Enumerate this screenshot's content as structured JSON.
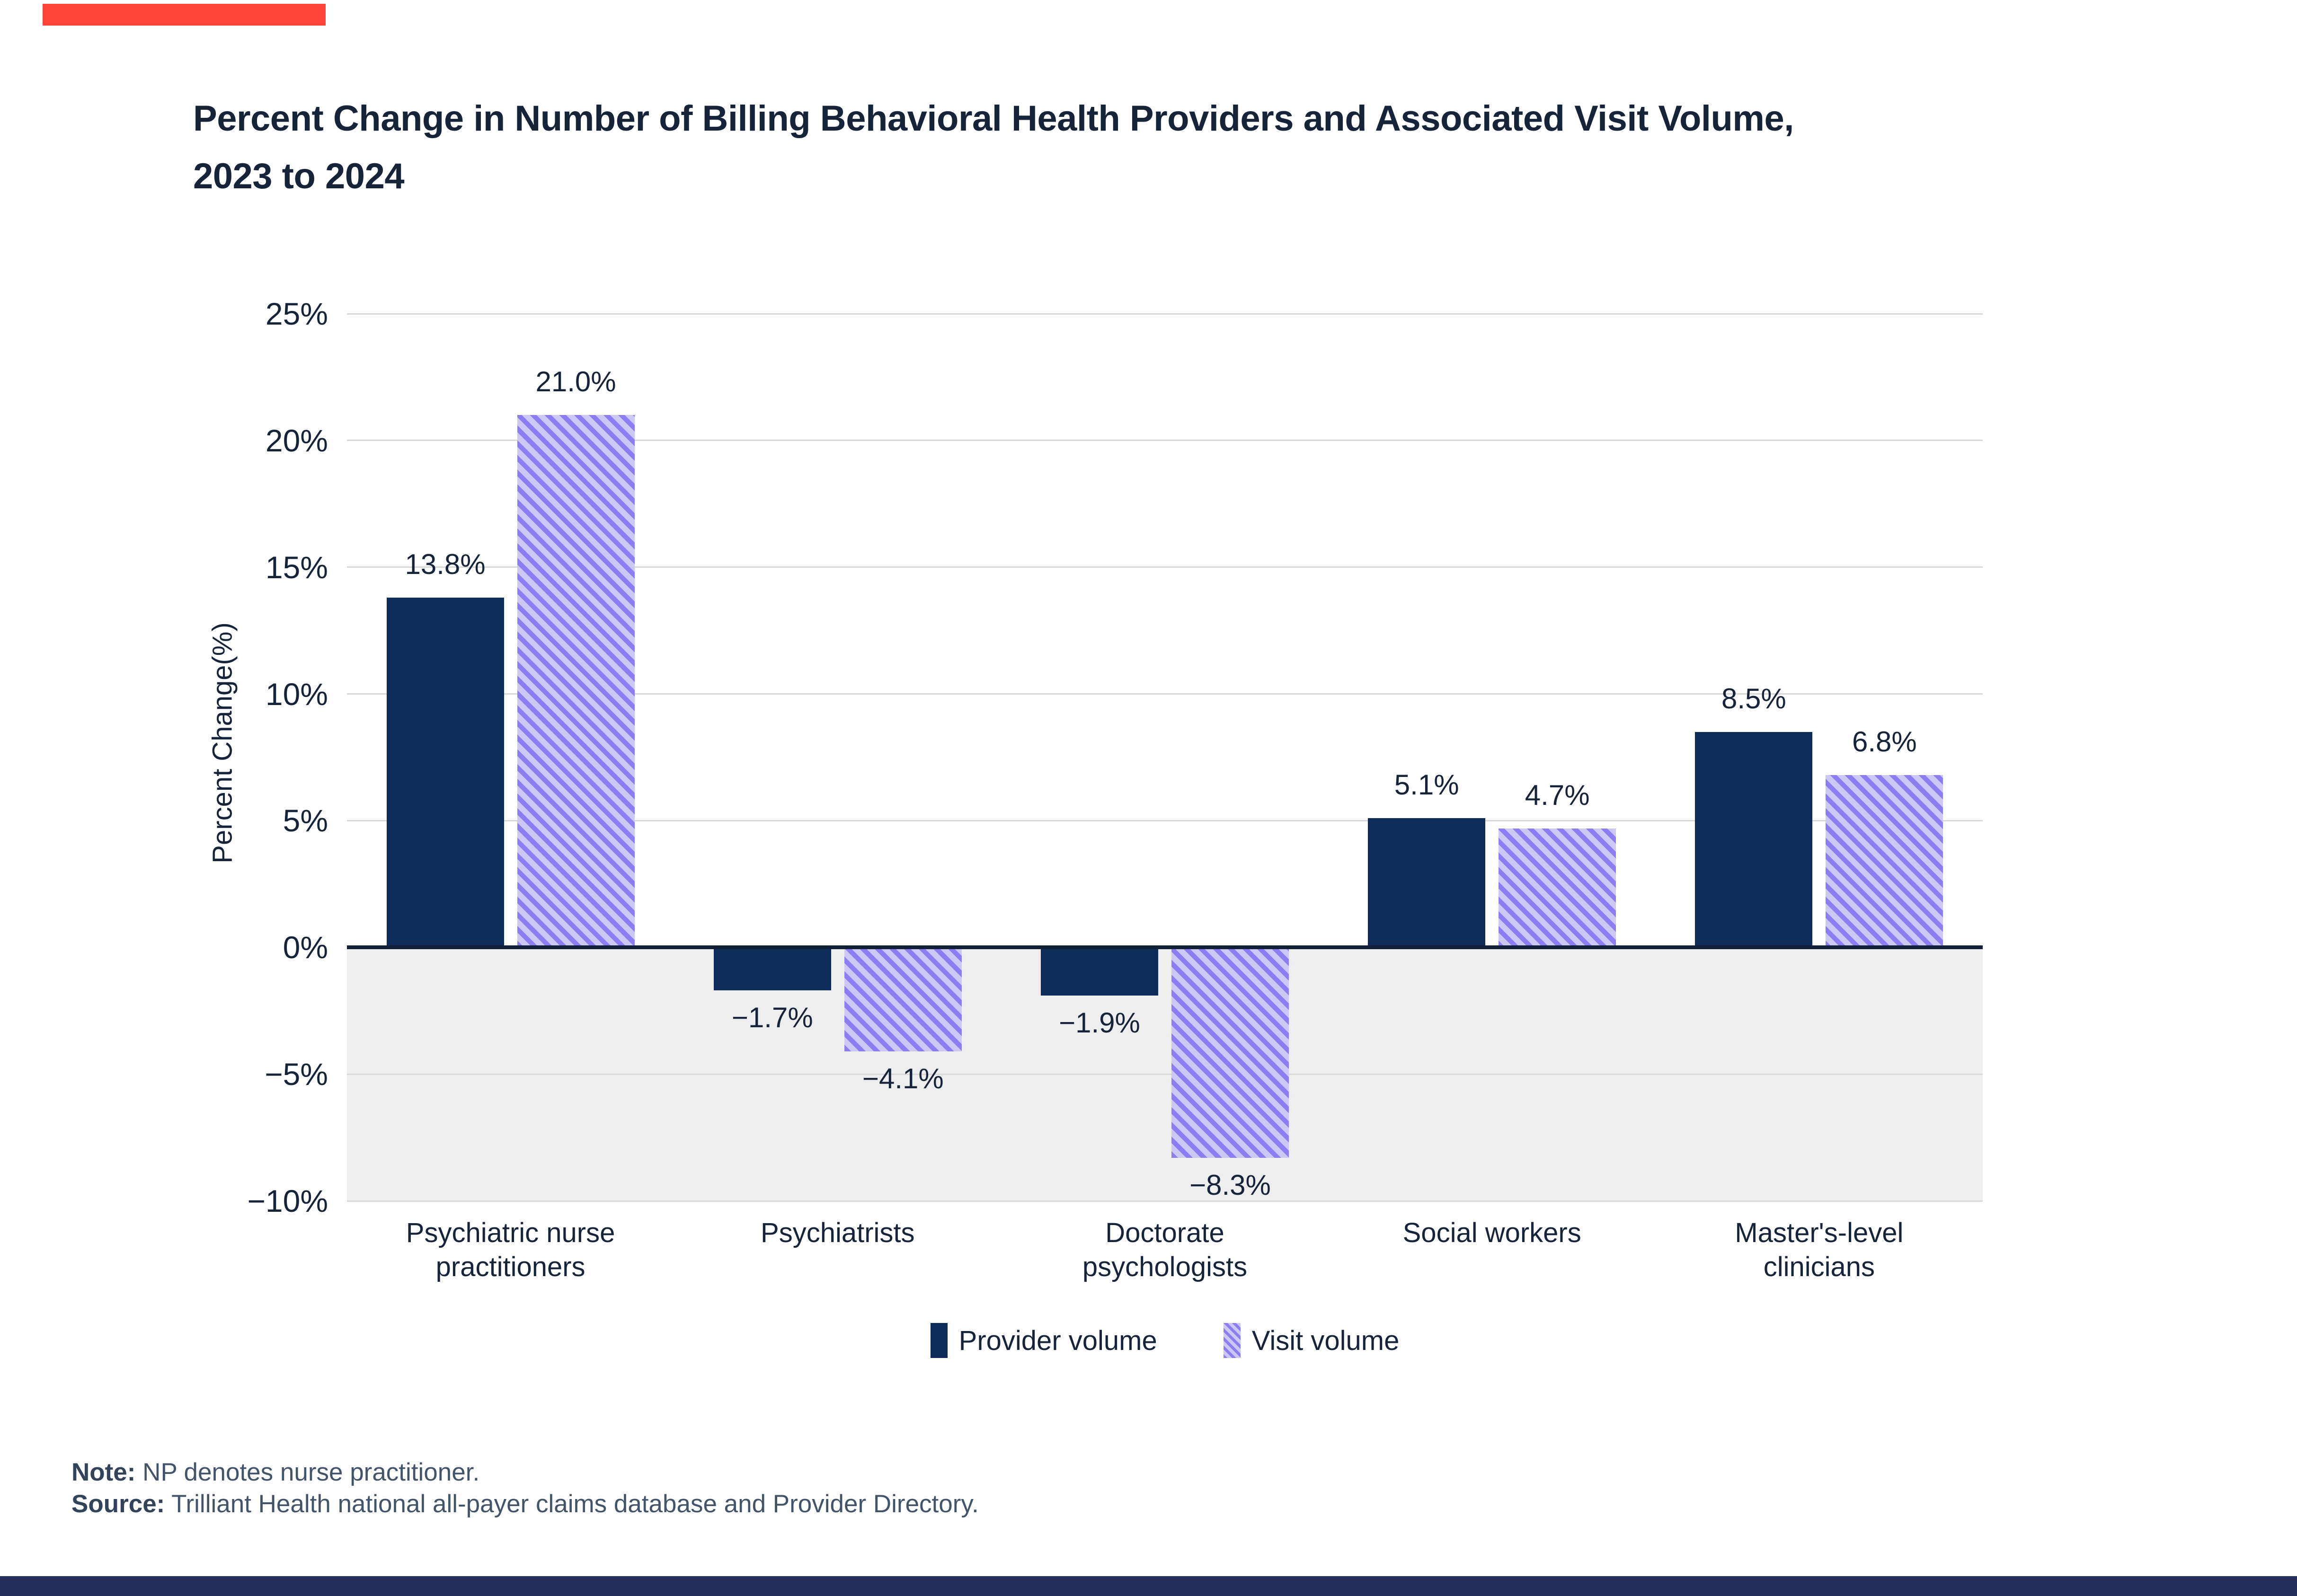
{
  "accents": {
    "top_bar_color": "#fb4338",
    "bottom_bar_color": "#232e5c"
  },
  "title": {
    "line1": "Percent Change in Number of Billing Behavioral Health Providers and Associated Visit Volume,",
    "line2": "2023 to 2024"
  },
  "chart_data": {
    "type": "bar",
    "title": "Percent Change in Number of Billing Behavioral Health Providers and Associated Visit Volume, 2023 to 2024",
    "categories": [
      "Psychiatric nurse practitioners",
      "Psychiatrists",
      "Doctorate psychologists",
      "Social workers",
      "Master's-level clinicians"
    ],
    "series": [
      {
        "name": "Provider volume",
        "values": [
          13.8,
          -1.7,
          -1.9,
          5.1,
          8.5
        ],
        "data_labels": [
          "13.8%",
          "−1.7%",
          "−1.9%",
          "5.1%",
          "8.5%"
        ],
        "color": "#0d2c5a",
        "pattern": "solid"
      },
      {
        "name": "Visit volume",
        "values": [
          21.0,
          -4.1,
          -8.3,
          4.7,
          6.8
        ],
        "data_labels": [
          "21.0%",
          "−4.1%",
          "−8.3%",
          "4.7%",
          "6.8%"
        ],
        "color": "#8d7df2",
        "pattern": "diagonal-hatch",
        "pattern_bg": "#cdc7f5"
      }
    ],
    "xlabel": "",
    "ylabel": "Percent Change(%)",
    "ylim": [
      -10,
      25
    ],
    "yticks": [
      {
        "v": 25,
        "label": "25%"
      },
      {
        "v": 20,
        "label": "20%"
      },
      {
        "v": 15,
        "label": "15%"
      },
      {
        "v": 10,
        "label": "10%"
      },
      {
        "v": 5,
        "label": "5%"
      },
      {
        "v": 0,
        "label": "0%"
      },
      {
        "v": -5,
        "label": "−5%"
      },
      {
        "v": -10,
        "label": "−10%"
      }
    ],
    "grid": true,
    "gridline_color": "#d9d9da",
    "zero_line_color": "#121f38",
    "negative_region_color": "#eeeeee",
    "legend_position": "bottom"
  },
  "legend": {
    "items": [
      {
        "label": "Provider volume",
        "swatch": "solid"
      },
      {
        "label": "Visit volume",
        "swatch": "hatch"
      }
    ]
  },
  "footnotes": {
    "note_label": "Note:",
    "note_text": " NP denotes nurse practitioner.",
    "source_label": "Source:",
    "source_text": " Trilliant Health national all-payer claims database and Provider Directory."
  }
}
